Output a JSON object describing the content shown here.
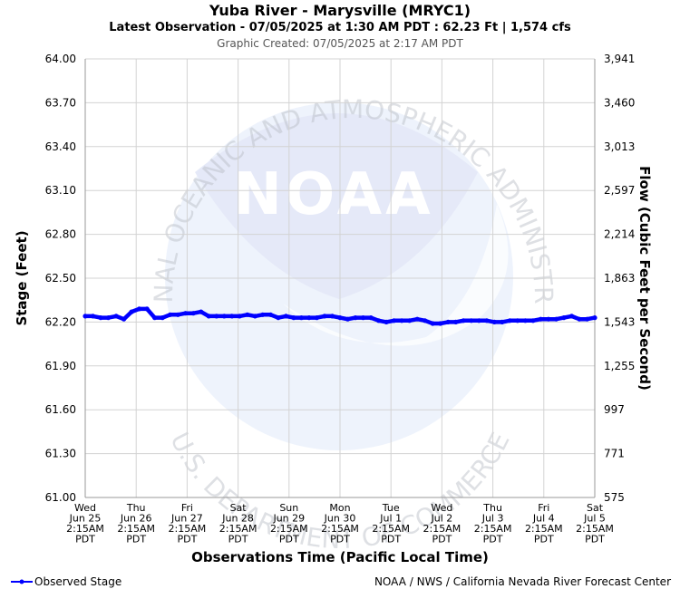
{
  "chart_data": {
    "type": "line",
    "title": "Yuba River - Marysville (MRYC1)",
    "subtitle": "Latest Observation - 07/05/2025 at 1:30 AM PDT : 62.23 Ft | 1,574 cfs",
    "created": "Graphic Created: 07/05/2025 at 2:17 AM PDT",
    "xlabel": "Observations Time (Pacific Local Time)",
    "ylabel": "Stage (Feet)",
    "y2label": "Flow (Cubic Feet per Second)",
    "ylim": [
      61.0,
      64.0
    ],
    "y_ticks": [
      "64.00",
      "63.70",
      "63.40",
      "63.10",
      "62.80",
      "62.50",
      "62.20",
      "61.90",
      "61.60",
      "61.30",
      "61.00"
    ],
    "y_tick_values": [
      64.0,
      63.7,
      63.4,
      63.1,
      62.8,
      62.5,
      62.2,
      61.9,
      61.6,
      61.3,
      61.0
    ],
    "y2_ticks": [
      "3,941",
      "3,460",
      "3,013",
      "2,597",
      "2,214",
      "1,863",
      "1,543",
      "1,255",
      "997",
      "771",
      "575"
    ],
    "x_ticks": [
      [
        "Wed",
        "Jun 25",
        "2:15AM",
        "PDT"
      ],
      [
        "Thu",
        "Jun 26",
        "2:15AM",
        "PDT"
      ],
      [
        "Fri",
        "Jun 27",
        "2:15AM",
        "PDT"
      ],
      [
        "Sat",
        "Jun 28",
        "2:15AM",
        "PDT"
      ],
      [
        "Sun",
        "Jun 29",
        "2:15AM",
        "PDT"
      ],
      [
        "Mon",
        "Jun 30",
        "2:15AM",
        "PDT"
      ],
      [
        "Tue",
        "Jul 1",
        "2:15AM",
        "PDT"
      ],
      [
        "Wed",
        "Jul 2",
        "2:15AM",
        "PDT"
      ],
      [
        "Thu",
        "Jul 3",
        "2:15AM",
        "PDT"
      ],
      [
        "Fri",
        "Jul 4",
        "2:15AM",
        "PDT"
      ],
      [
        "Sat",
        "Jul 5",
        "2:15AM",
        "PDT"
      ]
    ],
    "grid": true,
    "legend_position": "bottom-left",
    "series": [
      {
        "name": "Observed Stage",
        "color": "#0000ff",
        "values": [
          62.24,
          62.24,
          62.23,
          62.23,
          62.24,
          62.22,
          62.27,
          62.29,
          62.29,
          62.23,
          62.23,
          62.25,
          62.25,
          62.26,
          62.26,
          62.27,
          62.24,
          62.24,
          62.24,
          62.24,
          62.24,
          62.25,
          62.24,
          62.25,
          62.25,
          62.23,
          62.24,
          62.23,
          62.23,
          62.23,
          62.23,
          62.24,
          62.24,
          62.23,
          62.22,
          62.23,
          62.23,
          62.23,
          62.21,
          62.2,
          62.21,
          62.21,
          62.21,
          62.22,
          62.21,
          62.19,
          62.19,
          62.2,
          62.2,
          62.21,
          62.21,
          62.21,
          62.21,
          62.2,
          62.2,
          62.21,
          62.21,
          62.21,
          62.21,
          62.22,
          62.22,
          62.22,
          62.23,
          62.24,
          62.22,
          62.22,
          62.23
        ]
      }
    ]
  },
  "watermark": {
    "arc_top": "NATIONAL OCEANIC AND ATMOSPHERIC ADMINISTRATION",
    "arc_bottom": "U.S. DEPARTMENT OF COMMERCE",
    "logo": "NOAA"
  },
  "legend": {
    "label": "Observed Stage"
  },
  "footer": {
    "credit": "NOAA / NWS / California Nevada River Forecast Center"
  },
  "colors": {
    "line": "#0000ff",
    "grid": "#d3d3d3",
    "watermark": "#dfe6f7"
  }
}
